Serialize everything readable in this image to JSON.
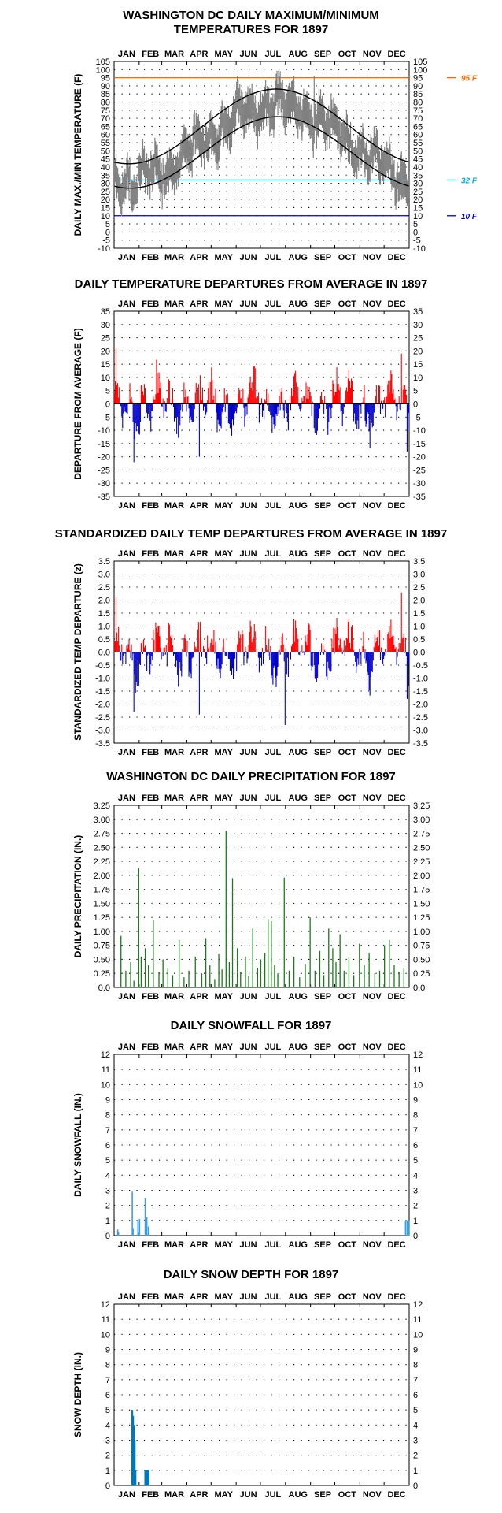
{
  "months": [
    "JAN",
    "FEB",
    "MAR",
    "APR",
    "MAY",
    "JUN",
    "JUL",
    "AUG",
    "SEP",
    "OCT",
    "NOV",
    "DEC"
  ],
  "colors": {
    "record_gray": "#808080",
    "normal_line": "#000000",
    "ref_95": "#ff6600",
    "ref_32": "#00b0e0",
    "ref_10": "#0000cc",
    "warm": "#ff0000",
    "cold": "#0000cc",
    "precip": "#1a7a1a",
    "snowfall": "#33a0ee",
    "snowdepth": "#0077bb"
  },
  "chart_data": [
    {
      "id": "temps",
      "type": "line",
      "title_lines": [
        "WASHINGTON DC DAILY MAXIMUM/MINIMUM",
        "TEMPERATURES FOR 1897"
      ],
      "ylabel": "DAILY MAX./MIN TEMPERATURE (F)",
      "ylim": [
        -10,
        105
      ],
      "yticks": [
        -10,
        -5,
        0,
        5,
        10,
        15,
        20,
        25,
        30,
        35,
        40,
        45,
        50,
        55,
        60,
        65,
        70,
        75,
        80,
        85,
        90,
        95,
        100,
        105
      ],
      "ref_lines": [
        {
          "value": 95,
          "label": "95 F",
          "color": "#ff6600"
        },
        {
          "value": 32,
          "label": "32 F",
          "color": "#00b0e0"
        },
        {
          "value": 10,
          "label": "10 F",
          "color": "#0000cc"
        }
      ],
      "normal_max": {
        "min": 42,
        "max": 88,
        "peak_day": 200
      },
      "normal_min": {
        "min": 27,
        "max": 71,
        "peak_day": 202
      },
      "series_note_days": "daily max/min generated as band around normals with anomalies",
      "grid": "dotted"
    },
    {
      "id": "departures",
      "type": "bar",
      "title_lines": [
        "DAILY TEMPERATURE DEPARTURES FROM AVERAGE IN 1897"
      ],
      "ylabel": "DEPARTURE FROM AVERAGE (F)",
      "ylim": [
        -35,
        35
      ],
      "yticks": [
        -35,
        -30,
        -25,
        -20,
        -15,
        -10,
        -5,
        0,
        5,
        10,
        15,
        20,
        25,
        30,
        35
      ],
      "grid": "dotted"
    },
    {
      "id": "std_departures",
      "type": "bar",
      "title_lines": [
        "STANDARDIZED DAILY TEMP DEPARTURES FROM AVERAGE IN 1897"
      ],
      "ylabel": "STANDARDIZED TEMP DEPARTURE (z)",
      "ylim": [
        -3.5,
        3.5
      ],
      "yticks": [
        "-3.5",
        "-3.0",
        "-2.5",
        "-2.0",
        "-1.5",
        "-1.0",
        "-0.5",
        "0.0",
        "0.5",
        "1.0",
        "1.5",
        "2.0",
        "2.5",
        "3.0",
        "3.5"
      ],
      "grid": "dotted"
    },
    {
      "id": "precip",
      "type": "bar",
      "title_lines": [
        "WASHINGTON DC DAILY PRECIPITATION FOR 1897"
      ],
      "ylabel": "DAILY PRECIPITATION (IN.)",
      "ylim": [
        0,
        3.25
      ],
      "yticks": [
        "0.0",
        "0.25",
        "0.50",
        "0.75",
        "1.00",
        "1.25",
        "1.50",
        "1.75",
        "2.00",
        "2.25",
        "2.50",
        "2.75",
        "3.00",
        "3.25"
      ],
      "grid": "dotted",
      "events": [
        [
          8,
          0.92
        ],
        [
          14,
          0.3
        ],
        [
          20,
          0.45
        ],
        [
          24,
          0.12
        ],
        [
          30,
          2.13
        ],
        [
          33,
          0.55
        ],
        [
          38,
          0.7
        ],
        [
          42,
          0.4
        ],
        [
          48,
          1.2
        ],
        [
          55,
          0.28
        ],
        [
          60,
          0.5
        ],
        [
          66,
          0.35
        ],
        [
          72,
          0.22
        ],
        [
          80,
          0.85
        ],
        [
          86,
          0.18
        ],
        [
          92,
          0.3
        ],
        [
          100,
          0.55
        ],
        [
          108,
          0.25
        ],
        [
          113,
          0.88
        ],
        [
          118,
          0.4
        ],
        [
          124,
          0.15
        ],
        [
          129,
          0.6
        ],
        [
          133,
          0.32
        ],
        [
          138,
          2.8
        ],
        [
          142,
          0.45
        ],
        [
          146,
          1.95
        ],
        [
          152,
          0.7
        ],
        [
          156,
          0.28
        ],
        [
          162,
          0.55
        ],
        [
          166,
          0.2
        ],
        [
          171,
          1.05
        ],
        [
          177,
          0.35
        ],
        [
          181,
          0.5
        ],
        [
          186,
          0.62
        ],
        [
          190,
          1.22
        ],
        [
          194,
          1.18
        ],
        [
          198,
          0.4
        ],
        [
          202,
          0.25
        ],
        [
          210,
          1.96
        ],
        [
          216,
          0.3
        ],
        [
          222,
          0.55
        ],
        [
          229,
          0.18
        ],
        [
          236,
          0.42
        ],
        [
          242,
          1.25
        ],
        [
          248,
          0.3
        ],
        [
          254,
          0.65
        ],
        [
          259,
          0.22
        ],
        [
          265,
          1.05
        ],
        [
          270,
          0.7
        ],
        [
          274,
          0.45
        ],
        [
          279,
          0.95
        ],
        [
          284,
          0.3
        ],
        [
          290,
          0.55
        ],
        [
          296,
          0.22
        ],
        [
          303,
          0.78
        ],
        [
          309,
          0.4
        ],
        [
          315,
          0.62
        ],
        [
          322,
          0.25
        ],
        [
          328,
          0.3
        ],
        [
          334,
          0.75
        ],
        [
          340,
          0.85
        ],
        [
          346,
          0.4
        ],
        [
          352,
          0.28
        ],
        [
          358,
          0.35
        ]
      ]
    },
    {
      "id": "snowfall",
      "type": "bar",
      "title_lines": [
        "DAILY SNOWFALL FOR 1897"
      ],
      "ylabel": "DAILY SNOWFALL (IN.)",
      "ylim": [
        0,
        12
      ],
      "yticks": [
        "0",
        "1",
        "2",
        "3",
        "4",
        "5",
        "6",
        "7",
        "8",
        "9",
        "10",
        "11",
        "12"
      ],
      "grid": "dotted",
      "events": [
        [
          4,
          0.4
        ],
        [
          5,
          0.2
        ],
        [
          22,
          2.9
        ],
        [
          23,
          0.5
        ],
        [
          29,
          1.0
        ],
        [
          31,
          1.1
        ],
        [
          38,
          2.5
        ],
        [
          40,
          1.2
        ],
        [
          42,
          0.6
        ],
        [
          360,
          1.0
        ],
        [
          362,
          1.0
        ],
        [
          364,
          1.0
        ]
      ]
    },
    {
      "id": "snowdepth",
      "type": "bar",
      "title_lines": [
        "DAILY SNOW DEPTH FOR 1897"
      ],
      "ylabel": "SNOW DEPTH (IN.)",
      "ylim": [
        0,
        12
      ],
      "yticks": [
        "0",
        "1",
        "2",
        "3",
        "4",
        "5",
        "6",
        "7",
        "8",
        "9",
        "10",
        "11",
        "12"
      ],
      "grid": "dotted",
      "events": [
        [
          22,
          5
        ],
        [
          23,
          4.6
        ],
        [
          24,
          4
        ],
        [
          25,
          3
        ],
        [
          26,
          1
        ],
        [
          38,
          1
        ],
        [
          39,
          1
        ],
        [
          40,
          1
        ],
        [
          41,
          1
        ],
        [
          42,
          1
        ]
      ]
    }
  ]
}
